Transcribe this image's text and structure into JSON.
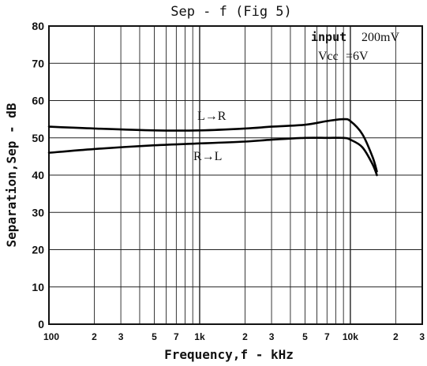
{
  "chart_data": {
    "type": "line",
    "title": "Sep - f (Fig 5)",
    "xlabel": "Frequency,f - kHz",
    "ylabel": "Separation,Sep - dB",
    "x_scale": "log",
    "xlim": [
      100,
      30000
    ],
    "ylim": [
      0,
      80
    ],
    "grid": true,
    "y_ticks": [
      "0",
      "10",
      "20",
      "30",
      "40",
      "50",
      "60",
      "70",
      "80"
    ],
    "x_ticks": [
      {
        "value": 100,
        "label": "100"
      },
      {
        "value": 200,
        "label": "2"
      },
      {
        "value": 300,
        "label": "3"
      },
      {
        "value": 500,
        "label": "5"
      },
      {
        "value": 700,
        "label": "7"
      },
      {
        "value": 1000,
        "label": "1k"
      },
      {
        "value": 2000,
        "label": "2"
      },
      {
        "value": 3000,
        "label": "3"
      },
      {
        "value": 5000,
        "label": "5"
      },
      {
        "value": 7000,
        "label": "7"
      },
      {
        "value": 10000,
        "label": "10k"
      },
      {
        "value": 20000,
        "label": "2"
      },
      {
        "value": 30000,
        "label": "3"
      }
    ],
    "series": [
      {
        "name": "L→R",
        "x": [
          100,
          200,
          500,
          1000,
          2000,
          3000,
          5000,
          7000,
          9000,
          10000,
          12000,
          14000,
          15000
        ],
        "y": [
          53,
          52.5,
          52,
          52,
          52.5,
          53,
          53.5,
          54.5,
          55,
          54.5,
          51,
          45,
          41
        ]
      },
      {
        "name": "R→L",
        "x": [
          100,
          200,
          500,
          1000,
          2000,
          3000,
          5000,
          7000,
          9000,
          10000,
          12000,
          14000,
          15000
        ],
        "y": [
          46,
          47,
          48,
          48.5,
          49,
          49.5,
          50,
          50,
          50,
          49.5,
          47.5,
          43,
          40
        ]
      }
    ],
    "annotations": {
      "input_label": "input",
      "input_value": "200mV",
      "vcc_label": "Vcc",
      "vcc_value": "=6V"
    }
  }
}
